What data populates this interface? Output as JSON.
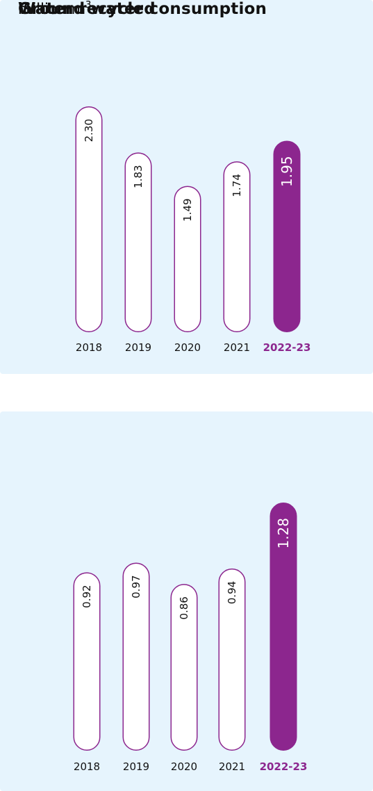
{
  "chart_data": [
    {
      "type": "bar",
      "title": "Ground water consumption",
      "unit_prefix": "million m",
      "unit_superscript": "3",
      "categories": [
        "2018",
        "2019",
        "2020",
        "2021",
        "2022-23"
      ],
      "values": [
        2.3,
        1.83,
        1.49,
        1.74,
        1.95
      ],
      "value_labels": [
        "2.30",
        "1.83",
        "1.49",
        "1.74",
        "1.95"
      ],
      "highlight_index": 4,
      "ylim": [
        0,
        2.3
      ],
      "grid": false,
      "colors": {
        "bar_fill": "#ffffff",
        "bar_stroke": "#8c268e",
        "highlight_fill": "#8c268e",
        "highlight_text": "#ffffff",
        "text": "#111111",
        "background": "#e6f4fd"
      }
    },
    {
      "type": "bar",
      "title": "Water recycled",
      "unit_prefix": "million m",
      "unit_superscript": "3",
      "categories": [
        "2018",
        "2019",
        "2020",
        "2021",
        "2022-23"
      ],
      "values": [
        0.92,
        0.97,
        0.86,
        0.94,
        1.28
      ],
      "value_labels": [
        "0.92",
        "0.97",
        "0.86",
        "0.94",
        "1.28"
      ],
      "highlight_index": 4,
      "ylim": [
        0,
        1.28
      ],
      "grid": false,
      "colors": {
        "bar_fill": "#ffffff",
        "bar_stroke": "#8c268e",
        "highlight_fill": "#8c268e",
        "highlight_text": "#ffffff",
        "text": "#111111",
        "background": "#e6f4fd"
      }
    }
  ]
}
